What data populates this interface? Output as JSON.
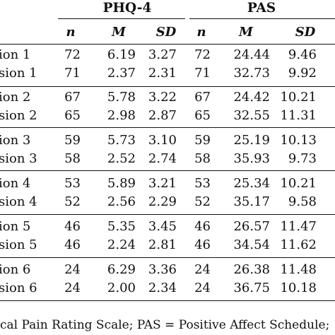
{
  "header": {
    "group1": "PHQ-4",
    "group2": "PAS",
    "cols": [
      "n",
      "M",
      "SD",
      "n",
      "M",
      "SD"
    ]
  },
  "rows": [
    {
      "label": "ion 1",
      "n1": "72",
      "m1": "6.19",
      "sd1": "3.27",
      "n2": "72",
      "m2": "24.44",
      "sd2": "9.46"
    },
    {
      "label": "sion 1",
      "n1": "71",
      "m1": "2.37",
      "sd1": "2.31",
      "n2": "71",
      "m2": "32.73",
      "sd2": "9.92"
    },
    {
      "label": "ion 2",
      "n1": "67",
      "m1": "5.78",
      "sd1": "3.22",
      "n2": "67",
      "m2": "24.42",
      "sd2": "10.21"
    },
    {
      "label": "sion 2",
      "n1": "65",
      "m1": "2.98",
      "sd1": "2.87",
      "n2": "65",
      "m2": "32.55",
      "sd2": "11.31"
    },
    {
      "label": "ion 3",
      "n1": "59",
      "m1": "5.73",
      "sd1": "3.10",
      "n2": "59",
      "m2": "25.19",
      "sd2": "10.13"
    },
    {
      "label": "sion 3",
      "n1": "58",
      "m1": "2.52",
      "sd1": "2.74",
      "n2": "58",
      "m2": "35.93",
      "sd2": "9.73"
    },
    {
      "label": "ion 4",
      "n1": "53",
      "m1": "5.89",
      "sd1": "3.21",
      "n2": "53",
      "m2": "25.34",
      "sd2": "10.21"
    },
    {
      "label": "sion 4",
      "n1": "52",
      "m1": "2.56",
      "sd1": "2.29",
      "n2": "52",
      "m2": "35.17",
      "sd2": "9.58"
    },
    {
      "label": "ion 5",
      "n1": "46",
      "m1": "5.35",
      "sd1": "3.45",
      "n2": "46",
      "m2": "26.57",
      "sd2": "11.47"
    },
    {
      "label": "sion 5",
      "n1": "46",
      "m1": "2.24",
      "sd1": "2.81",
      "n2": "46",
      "m2": "34.54",
      "sd2": "11.62"
    },
    {
      "label": "ion 6",
      "n1": "24",
      "m1": "6.29",
      "sd1": "3.36",
      "n2": "24",
      "m2": "26.38",
      "sd2": "11.48"
    },
    {
      "label": "sion 6",
      "n1": "24",
      "m1": "2.00",
      "sd1": "2.34",
      "n2": "24",
      "m2": "36.75",
      "sd2": "10.18"
    }
  ],
  "footnote": "cal Pain Rating Scale; PAS = Positive Affect Schedule;"
}
